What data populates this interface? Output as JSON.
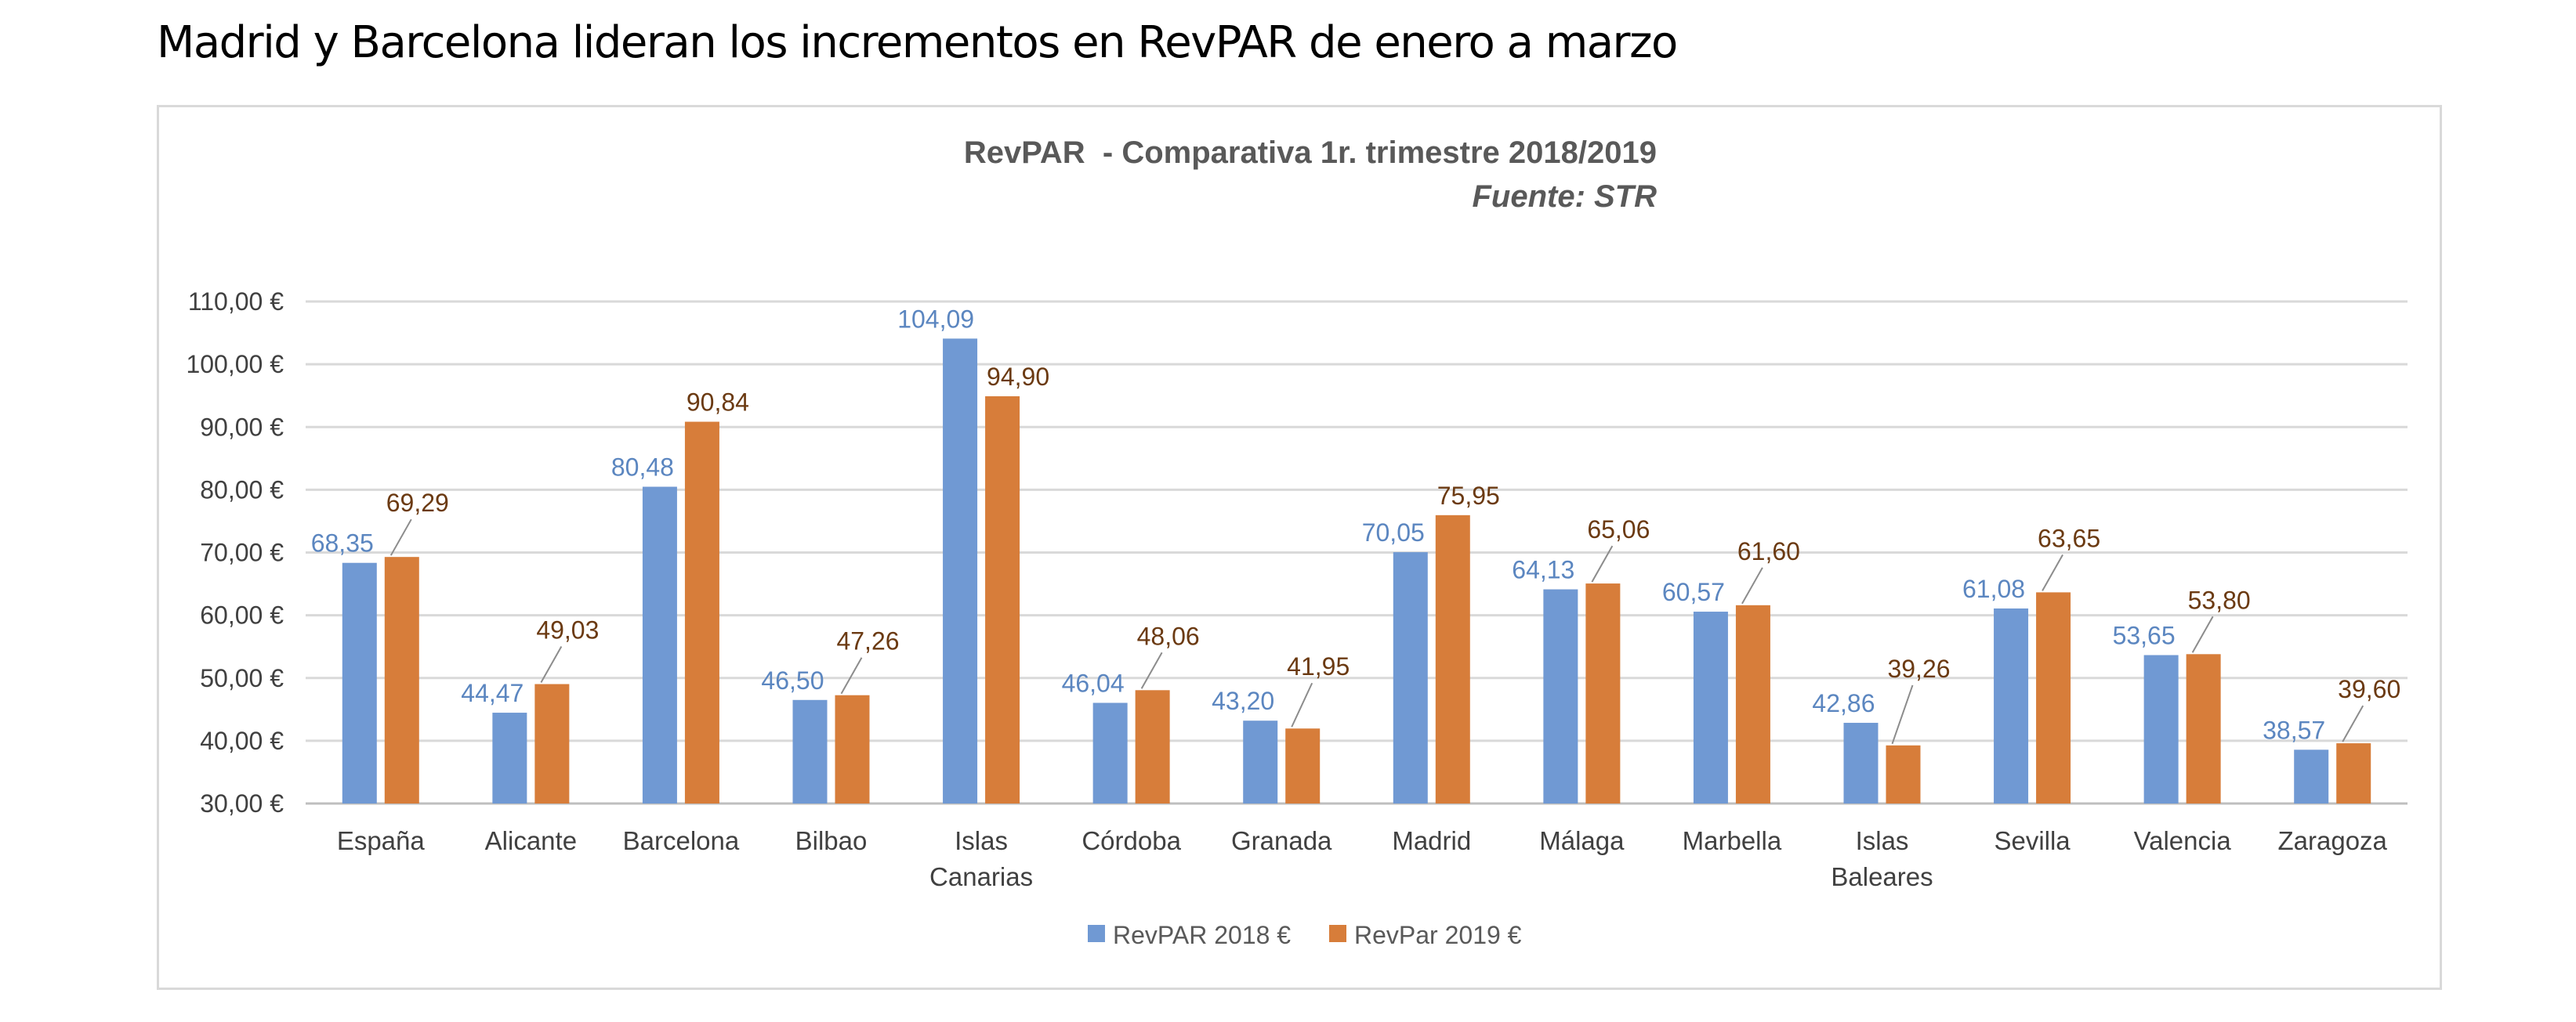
{
  "page_title": "Madrid y Barcelona lideran los incrementos en RevPAR de enero a marzo",
  "chart_data": {
    "type": "bar",
    "title": "RevPAR  - Comparativa 1r. trimestre 2018/2019",
    "subtitle": "Fuente: STR",
    "xlabel": "",
    "ylabel": "",
    "ylim": [
      30,
      110
    ],
    "yticks": [
      30,
      40,
      50,
      60,
      70,
      80,
      90,
      100,
      110
    ],
    "ytick_labels": [
      "30,00 €",
      "40,00 €",
      "50,00 €",
      "60,00 €",
      "70,00 €",
      "80,00 €",
      "90,00 €",
      "100,00 €",
      "110,00 €"
    ],
    "grid": true,
    "legend_position": "bottom",
    "categories": [
      "España",
      "Alicante",
      "Barcelona",
      "Bilbao",
      "Islas Canarias",
      "Córdoba",
      "Granada",
      "Madrid",
      "Málaga",
      "Marbella",
      "Islas Baleares",
      "Sevilla",
      "Valencia",
      "Zaragoza"
    ],
    "category_lines": [
      [
        "España"
      ],
      [
        "Alicante"
      ],
      [
        "Barcelona"
      ],
      [
        "Bilbao"
      ],
      [
        "Islas",
        "Canarias"
      ],
      [
        "Córdoba"
      ],
      [
        "Granada"
      ],
      [
        "Madrid"
      ],
      [
        "Málaga"
      ],
      [
        "Marbella"
      ],
      [
        "Islas",
        "Baleares"
      ],
      [
        "Sevilla"
      ],
      [
        "Valencia"
      ],
      [
        "Zaragoza"
      ]
    ],
    "series": [
      {
        "name": "RevPAR 2018 €",
        "color": "#7099d3",
        "values": [
          68.35,
          44.47,
          80.48,
          46.5,
          104.09,
          46.04,
          43.2,
          70.05,
          64.13,
          60.57,
          42.86,
          61.08,
          53.65,
          38.57
        ],
        "labels": [
          "68,35",
          "44,47",
          "80,48",
          "46,50",
          "104,09",
          "46,04",
          "43,20",
          "70,05",
          "64,13",
          "60,57",
          "42,86",
          "61,08",
          "53,65",
          "38,57"
        ]
      },
      {
        "name": "RevPar 2019 €",
        "color": "#d77d3a",
        "values": [
          69.29,
          49.03,
          90.84,
          47.26,
          94.9,
          48.06,
          41.95,
          75.95,
          65.06,
          61.6,
          39.26,
          63.65,
          53.8,
          39.6
        ],
        "labels": [
          "69,29",
          "49,03",
          "90,84",
          "47,26",
          "94,90",
          "48,06",
          "41,95",
          "75,95",
          "65,06",
          "61,60",
          "39,26",
          "63,65",
          "53,80",
          "39,60"
        ]
      }
    ]
  }
}
